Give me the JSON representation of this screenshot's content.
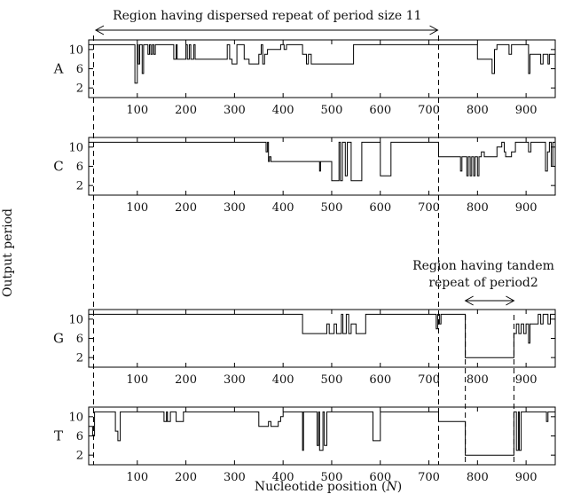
{
  "chart_data": {
    "type": "line",
    "ylabel": "Output period",
    "xlabel_prefix": "Nucleotide position (",
    "xlabel_var": "N",
    "xlabel_suffix": ")",
    "xlim": [
      0,
      960
    ],
    "ylim": [
      0,
      12
    ],
    "x_ticks": [
      100,
      200,
      300,
      400,
      500,
      600,
      700,
      800,
      900
    ],
    "y_ticks": [
      2,
      6,
      10
    ],
    "grid": false,
    "annotations": [
      {
        "text": "Region having dispersed repeat of period size 11",
        "x_start": 0,
        "x_end": 720
      },
      {
        "text_line1": "Region having tandem",
        "text_line2": "repeat of period2",
        "x_start": 775,
        "x_end": 875
      }
    ],
    "dashed_verticals": [
      10,
      720,
      775,
      875
    ],
    "series": [
      {
        "name": "A",
        "points": [
          [
            0,
            11
          ],
          [
            95,
            11
          ],
          [
            95,
            3
          ],
          [
            100,
            3
          ],
          [
            100,
            11
          ],
          [
            102,
            11
          ],
          [
            102,
            7
          ],
          [
            105,
            7
          ],
          [
            105,
            11
          ],
          [
            110,
            11
          ],
          [
            110,
            5
          ],
          [
            113,
            5
          ],
          [
            113,
            11
          ],
          [
            122,
            11
          ],
          [
            122,
            9
          ],
          [
            125,
            9
          ],
          [
            125,
            11
          ],
          [
            128,
            11
          ],
          [
            128,
            9
          ],
          [
            131,
            9
          ],
          [
            131,
            11
          ],
          [
            134,
            11
          ],
          [
            134,
            9
          ],
          [
            137,
            9
          ],
          [
            137,
            11
          ],
          [
            175,
            11
          ],
          [
            175,
            8
          ],
          [
            180,
            8
          ],
          [
            180,
            11
          ],
          [
            182,
            11
          ],
          [
            182,
            8
          ],
          [
            200,
            8
          ],
          [
            200,
            11
          ],
          [
            203,
            11
          ],
          [
            203,
            8
          ],
          [
            207,
            8
          ],
          [
            207,
            11
          ],
          [
            210,
            11
          ],
          [
            210,
            8
          ],
          [
            216,
            8
          ],
          [
            216,
            11
          ],
          [
            219,
            11
          ],
          [
            219,
            8
          ],
          [
            285,
            8
          ],
          [
            285,
            11
          ],
          [
            290,
            11
          ],
          [
            290,
            8
          ],
          [
            295,
            8
          ],
          [
            295,
            7
          ],
          [
            305,
            7
          ],
          [
            305,
            11
          ],
          [
            320,
            11
          ],
          [
            320,
            8
          ],
          [
            330,
            8
          ],
          [
            330,
            7
          ],
          [
            350,
            7
          ],
          [
            350,
            9
          ],
          [
            355,
            9
          ],
          [
            355,
            11
          ],
          [
            358,
            11
          ],
          [
            358,
            7
          ],
          [
            362,
            7
          ],
          [
            362,
            9
          ],
          [
            368,
            9
          ],
          [
            368,
            10
          ],
          [
            395,
            10
          ],
          [
            395,
            11
          ],
          [
            402,
            11
          ],
          [
            402,
            10
          ],
          [
            407,
            10
          ],
          [
            407,
            11
          ],
          [
            440,
            11
          ],
          [
            440,
            9
          ],
          [
            448,
            9
          ],
          [
            448,
            7
          ],
          [
            452,
            7
          ],
          [
            452,
            9
          ],
          [
            458,
            9
          ],
          [
            458,
            7
          ],
          [
            545,
            7
          ],
          [
            545,
            11
          ],
          [
            800,
            11
          ],
          [
            800,
            8
          ],
          [
            830,
            8
          ],
          [
            830,
            5
          ],
          [
            835,
            5
          ],
          [
            835,
            10
          ],
          [
            840,
            10
          ],
          [
            840,
            11
          ],
          [
            865,
            11
          ],
          [
            865,
            9
          ],
          [
            870,
            9
          ],
          [
            870,
            11
          ],
          [
            905,
            11
          ],
          [
            905,
            5
          ],
          [
            908,
            5
          ],
          [
            908,
            9
          ],
          [
            930,
            9
          ],
          [
            930,
            7
          ],
          [
            935,
            7
          ],
          [
            935,
            9
          ],
          [
            945,
            9
          ],
          [
            945,
            7
          ],
          [
            948,
            7
          ],
          [
            948,
            9
          ],
          [
            960,
            9
          ]
        ]
      },
      {
        "name": "C",
        "points": [
          [
            0,
            11
          ],
          [
            365,
            11
          ],
          [
            365,
            9
          ],
          [
            368,
            9
          ],
          [
            368,
            11
          ],
          [
            370,
            11
          ],
          [
            370,
            7
          ],
          [
            372,
            7
          ],
          [
            372,
            8
          ],
          [
            375,
            8
          ],
          [
            375,
            7
          ],
          [
            475,
            7
          ],
          [
            475,
            5
          ],
          [
            477,
            5
          ],
          [
            477,
            7
          ],
          [
            500,
            7
          ],
          [
            500,
            3
          ],
          [
            515,
            3
          ],
          [
            515,
            11
          ],
          [
            518,
            11
          ],
          [
            518,
            3
          ],
          [
            522,
            3
          ],
          [
            522,
            11
          ],
          [
            528,
            11
          ],
          [
            528,
            4
          ],
          [
            532,
            4
          ],
          [
            532,
            11
          ],
          [
            540,
            11
          ],
          [
            540,
            3
          ],
          [
            562,
            3
          ],
          [
            562,
            11
          ],
          [
            600,
            11
          ],
          [
            600,
            4
          ],
          [
            622,
            4
          ],
          [
            622,
            11
          ],
          [
            720,
            11
          ],
          [
            720,
            8
          ],
          [
            765,
            8
          ],
          [
            765,
            5
          ],
          [
            768,
            5
          ],
          [
            768,
            8
          ],
          [
            778,
            8
          ],
          [
            778,
            4
          ],
          [
            781,
            4
          ],
          [
            781,
            8
          ],
          [
            785,
            8
          ],
          [
            785,
            4
          ],
          [
            788,
            4
          ],
          [
            788,
            8
          ],
          [
            792,
            8
          ],
          [
            792,
            4
          ],
          [
            795,
            4
          ],
          [
            795,
            8
          ],
          [
            800,
            8
          ],
          [
            800,
            4
          ],
          [
            803,
            4
          ],
          [
            803,
            8
          ],
          [
            808,
            8
          ],
          [
            808,
            9
          ],
          [
            814,
            9
          ],
          [
            814,
            8
          ],
          [
            840,
            8
          ],
          [
            840,
            10
          ],
          [
            850,
            10
          ],
          [
            850,
            11
          ],
          [
            855,
            11
          ],
          [
            855,
            9
          ],
          [
            858,
            9
          ],
          [
            858,
            8
          ],
          [
            870,
            8
          ],
          [
            870,
            9
          ],
          [
            878,
            9
          ],
          [
            878,
            11
          ],
          [
            905,
            11
          ],
          [
            905,
            9
          ],
          [
            910,
            9
          ],
          [
            910,
            11
          ],
          [
            940,
            11
          ],
          [
            940,
            5
          ],
          [
            944,
            5
          ],
          [
            944,
            9
          ],
          [
            948,
            9
          ],
          [
            948,
            11
          ],
          [
            952,
            11
          ],
          [
            952,
            6
          ],
          [
            955,
            6
          ],
          [
            955,
            11
          ],
          [
            960,
            11
          ]
        ]
      },
      {
        "name": "G",
        "points": [
          [
            0,
            11
          ],
          [
            440,
            11
          ],
          [
            440,
            7
          ],
          [
            490,
            7
          ],
          [
            490,
            9
          ],
          [
            495,
            9
          ],
          [
            495,
            7
          ],
          [
            505,
            7
          ],
          [
            505,
            9
          ],
          [
            510,
            9
          ],
          [
            510,
            7
          ],
          [
            520,
            7
          ],
          [
            520,
            11
          ],
          [
            523,
            11
          ],
          [
            523,
            7
          ],
          [
            530,
            7
          ],
          [
            530,
            11
          ],
          [
            535,
            11
          ],
          [
            535,
            7
          ],
          [
            540,
            7
          ],
          [
            540,
            9
          ],
          [
            550,
            9
          ],
          [
            550,
            7
          ],
          [
            570,
            7
          ],
          [
            570,
            11
          ],
          [
            715,
            11
          ],
          [
            715,
            8
          ],
          [
            718,
            8
          ],
          [
            718,
            11
          ],
          [
            722,
            11
          ],
          [
            722,
            9
          ],
          [
            725,
            9
          ],
          [
            725,
            11
          ],
          [
            775,
            11
          ],
          [
            775,
            2
          ],
          [
            875,
            2
          ],
          [
            875,
            7
          ],
          [
            880,
            7
          ],
          [
            880,
            9
          ],
          [
            885,
            9
          ],
          [
            885,
            7
          ],
          [
            890,
            7
          ],
          [
            890,
            9
          ],
          [
            895,
            9
          ],
          [
            895,
            7
          ],
          [
            900,
            7
          ],
          [
            900,
            9
          ],
          [
            905,
            9
          ],
          [
            905,
            5
          ],
          [
            908,
            5
          ],
          [
            908,
            9
          ],
          [
            925,
            9
          ],
          [
            925,
            11
          ],
          [
            930,
            11
          ],
          [
            930,
            9
          ],
          [
            935,
            9
          ],
          [
            935,
            11
          ],
          [
            945,
            11
          ],
          [
            945,
            9
          ],
          [
            950,
            9
          ],
          [
            950,
            11
          ],
          [
            960,
            11
          ]
        ]
      },
      {
        "name": "T",
        "points": [
          [
            0,
            8
          ],
          [
            8,
            8
          ],
          [
            8,
            6
          ],
          [
            12,
            6
          ],
          [
            12,
            11
          ],
          [
            55,
            11
          ],
          [
            55,
            7
          ],
          [
            60,
            7
          ],
          [
            60,
            5
          ],
          [
            65,
            5
          ],
          [
            65,
            11
          ],
          [
            155,
            11
          ],
          [
            155,
            9
          ],
          [
            160,
            9
          ],
          [
            160,
            11
          ],
          [
            162,
            11
          ],
          [
            162,
            9
          ],
          [
            168,
            9
          ],
          [
            168,
            11
          ],
          [
            180,
            11
          ],
          [
            180,
            9
          ],
          [
            195,
            9
          ],
          [
            195,
            11
          ],
          [
            350,
            11
          ],
          [
            350,
            8
          ],
          [
            370,
            8
          ],
          [
            370,
            9
          ],
          [
            375,
            9
          ],
          [
            375,
            8
          ],
          [
            390,
            8
          ],
          [
            390,
            9
          ],
          [
            395,
            9
          ],
          [
            395,
            10
          ],
          [
            400,
            10
          ],
          [
            400,
            11
          ],
          [
            440,
            11
          ],
          [
            440,
            3
          ],
          [
            442,
            3
          ],
          [
            442,
            11
          ],
          [
            470,
            11
          ],
          [
            470,
            4
          ],
          [
            473,
            4
          ],
          [
            473,
            11
          ],
          [
            475,
            11
          ],
          [
            475,
            3
          ],
          [
            482,
            3
          ],
          [
            482,
            11
          ],
          [
            485,
            11
          ],
          [
            485,
            4
          ],
          [
            490,
            4
          ],
          [
            490,
            11
          ],
          [
            585,
            11
          ],
          [
            585,
            5
          ],
          [
            600,
            5
          ],
          [
            600,
            11
          ],
          [
            720,
            11
          ],
          [
            720,
            9
          ],
          [
            775,
            9
          ],
          [
            775,
            2
          ],
          [
            875,
            2
          ],
          [
            875,
            11
          ],
          [
            880,
            11
          ],
          [
            880,
            3
          ],
          [
            884,
            3
          ],
          [
            884,
            11
          ],
          [
            886,
            11
          ],
          [
            886,
            3
          ],
          [
            890,
            3
          ],
          [
            890,
            11
          ],
          [
            942,
            11
          ],
          [
            942,
            9
          ],
          [
            945,
            9
          ],
          [
            945,
            11
          ],
          [
            960,
            11
          ]
        ]
      }
    ]
  }
}
